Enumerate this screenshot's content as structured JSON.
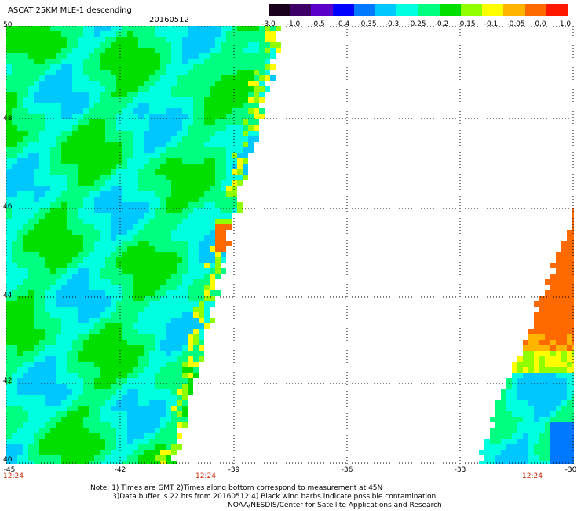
{
  "title": "ASCAT 25KM MLE-1 descending",
  "date": "20160512",
  "colorbar": {
    "labels": [
      "-3.0",
      "-1.0",
      "-0.5",
      "-0.4",
      "-0.35",
      "-0.3",
      "-0.25",
      "-0.2",
      "-0.15",
      "-0.1",
      "-0.05",
      "0.0",
      "1.0"
    ],
    "colors": [
      "#1a001a",
      "#3d0066",
      "#5a00c8",
      "#0000ff",
      "#0078ff",
      "#00c8ff",
      "#00ffe0",
      "#00ff80",
      "#00e000",
      "#90ff00",
      "#ffff00",
      "#ffb400",
      "#ff6a00",
      "#ff1800"
    ]
  },
  "axes": {
    "lat_labels": [
      "50",
      "48",
      "46",
      "44",
      "42",
      "40"
    ],
    "lon_labels": [
      "-45",
      "-42",
      "-39",
      "-36",
      "-33",
      "-30"
    ],
    "lat_range": [
      40,
      50
    ],
    "lon_range": [
      -45,
      -30
    ]
  },
  "times": [
    "12:24",
    "12:24",
    "12:24"
  ],
  "notes": [
    "Note: 1) Times are GMT 2)Times along bottom correspond to measurement at 45N",
    "3)Data buffer is 22 hrs from 20160512 4) Black wind barbs indicate possible contamination",
    "NOAA/NESDIS/Center for Satellite Applications and Research"
  ]
}
